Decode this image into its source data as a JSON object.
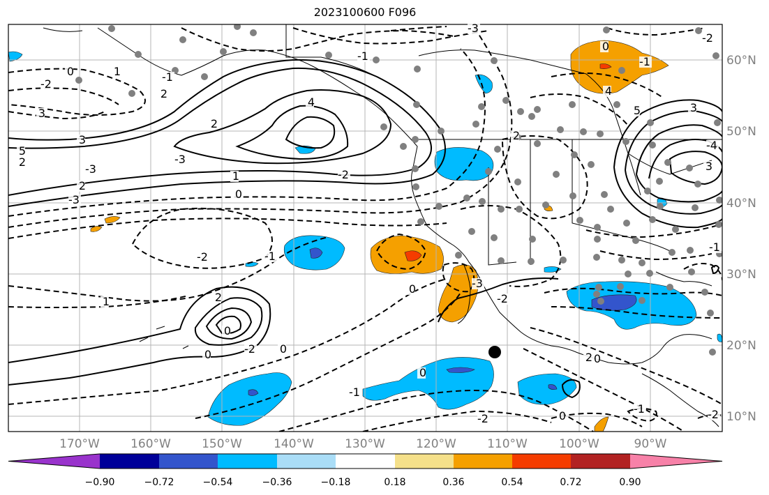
{
  "title": "2023100600 F096",
  "axes": {
    "lon_labels": [
      "170°W",
      "160°W",
      "150°W",
      "140°W",
      "130°W",
      "120°W",
      "110°W",
      "100°W",
      "90°W"
    ],
    "lat_labels": [
      "60°N",
      "50°N",
      "40°N",
      "30°N",
      "20°N",
      "10°N"
    ]
  },
  "colorbar": {
    "tick_labels": [
      "−0.90",
      "−0.72",
      "−0.54",
      "−0.36",
      "−0.18",
      "0.18",
      "0.36",
      "0.54",
      "0.72",
      "0.90"
    ],
    "colors": [
      "#9933cc",
      "#000099",
      "#3355cc",
      "#00bbff",
      "#aaddf7",
      "#ffffff",
      "#f5e08a",
      "#f5a000",
      "#f53c00",
      "#b22222",
      "#f781a8"
    ]
  },
  "contour_labels": [
    "-3",
    "-1",
    "0",
    "-2",
    "1",
    "4",
    "2",
    "3",
    "5",
    "-3",
    "2",
    "3",
    "2",
    "1",
    "-2",
    "0",
    "-3",
    "-2",
    "-1",
    "1",
    "2",
    "0",
    "-2",
    "0",
    "0",
    "-1",
    "0",
    "0",
    "-2",
    "-3",
    "2",
    "0",
    "-1",
    "4",
    "5",
    "3",
    "-4",
    "3",
    "2",
    "-3",
    "-1",
    "-2",
    "-1",
    "0",
    "-2",
    "2",
    "0",
    "-1",
    "-2"
  ],
  "map_features": {
    "storm_marker": "black-dot",
    "station_markers": "gray-dots",
    "shading": "anomaly-field"
  }
}
